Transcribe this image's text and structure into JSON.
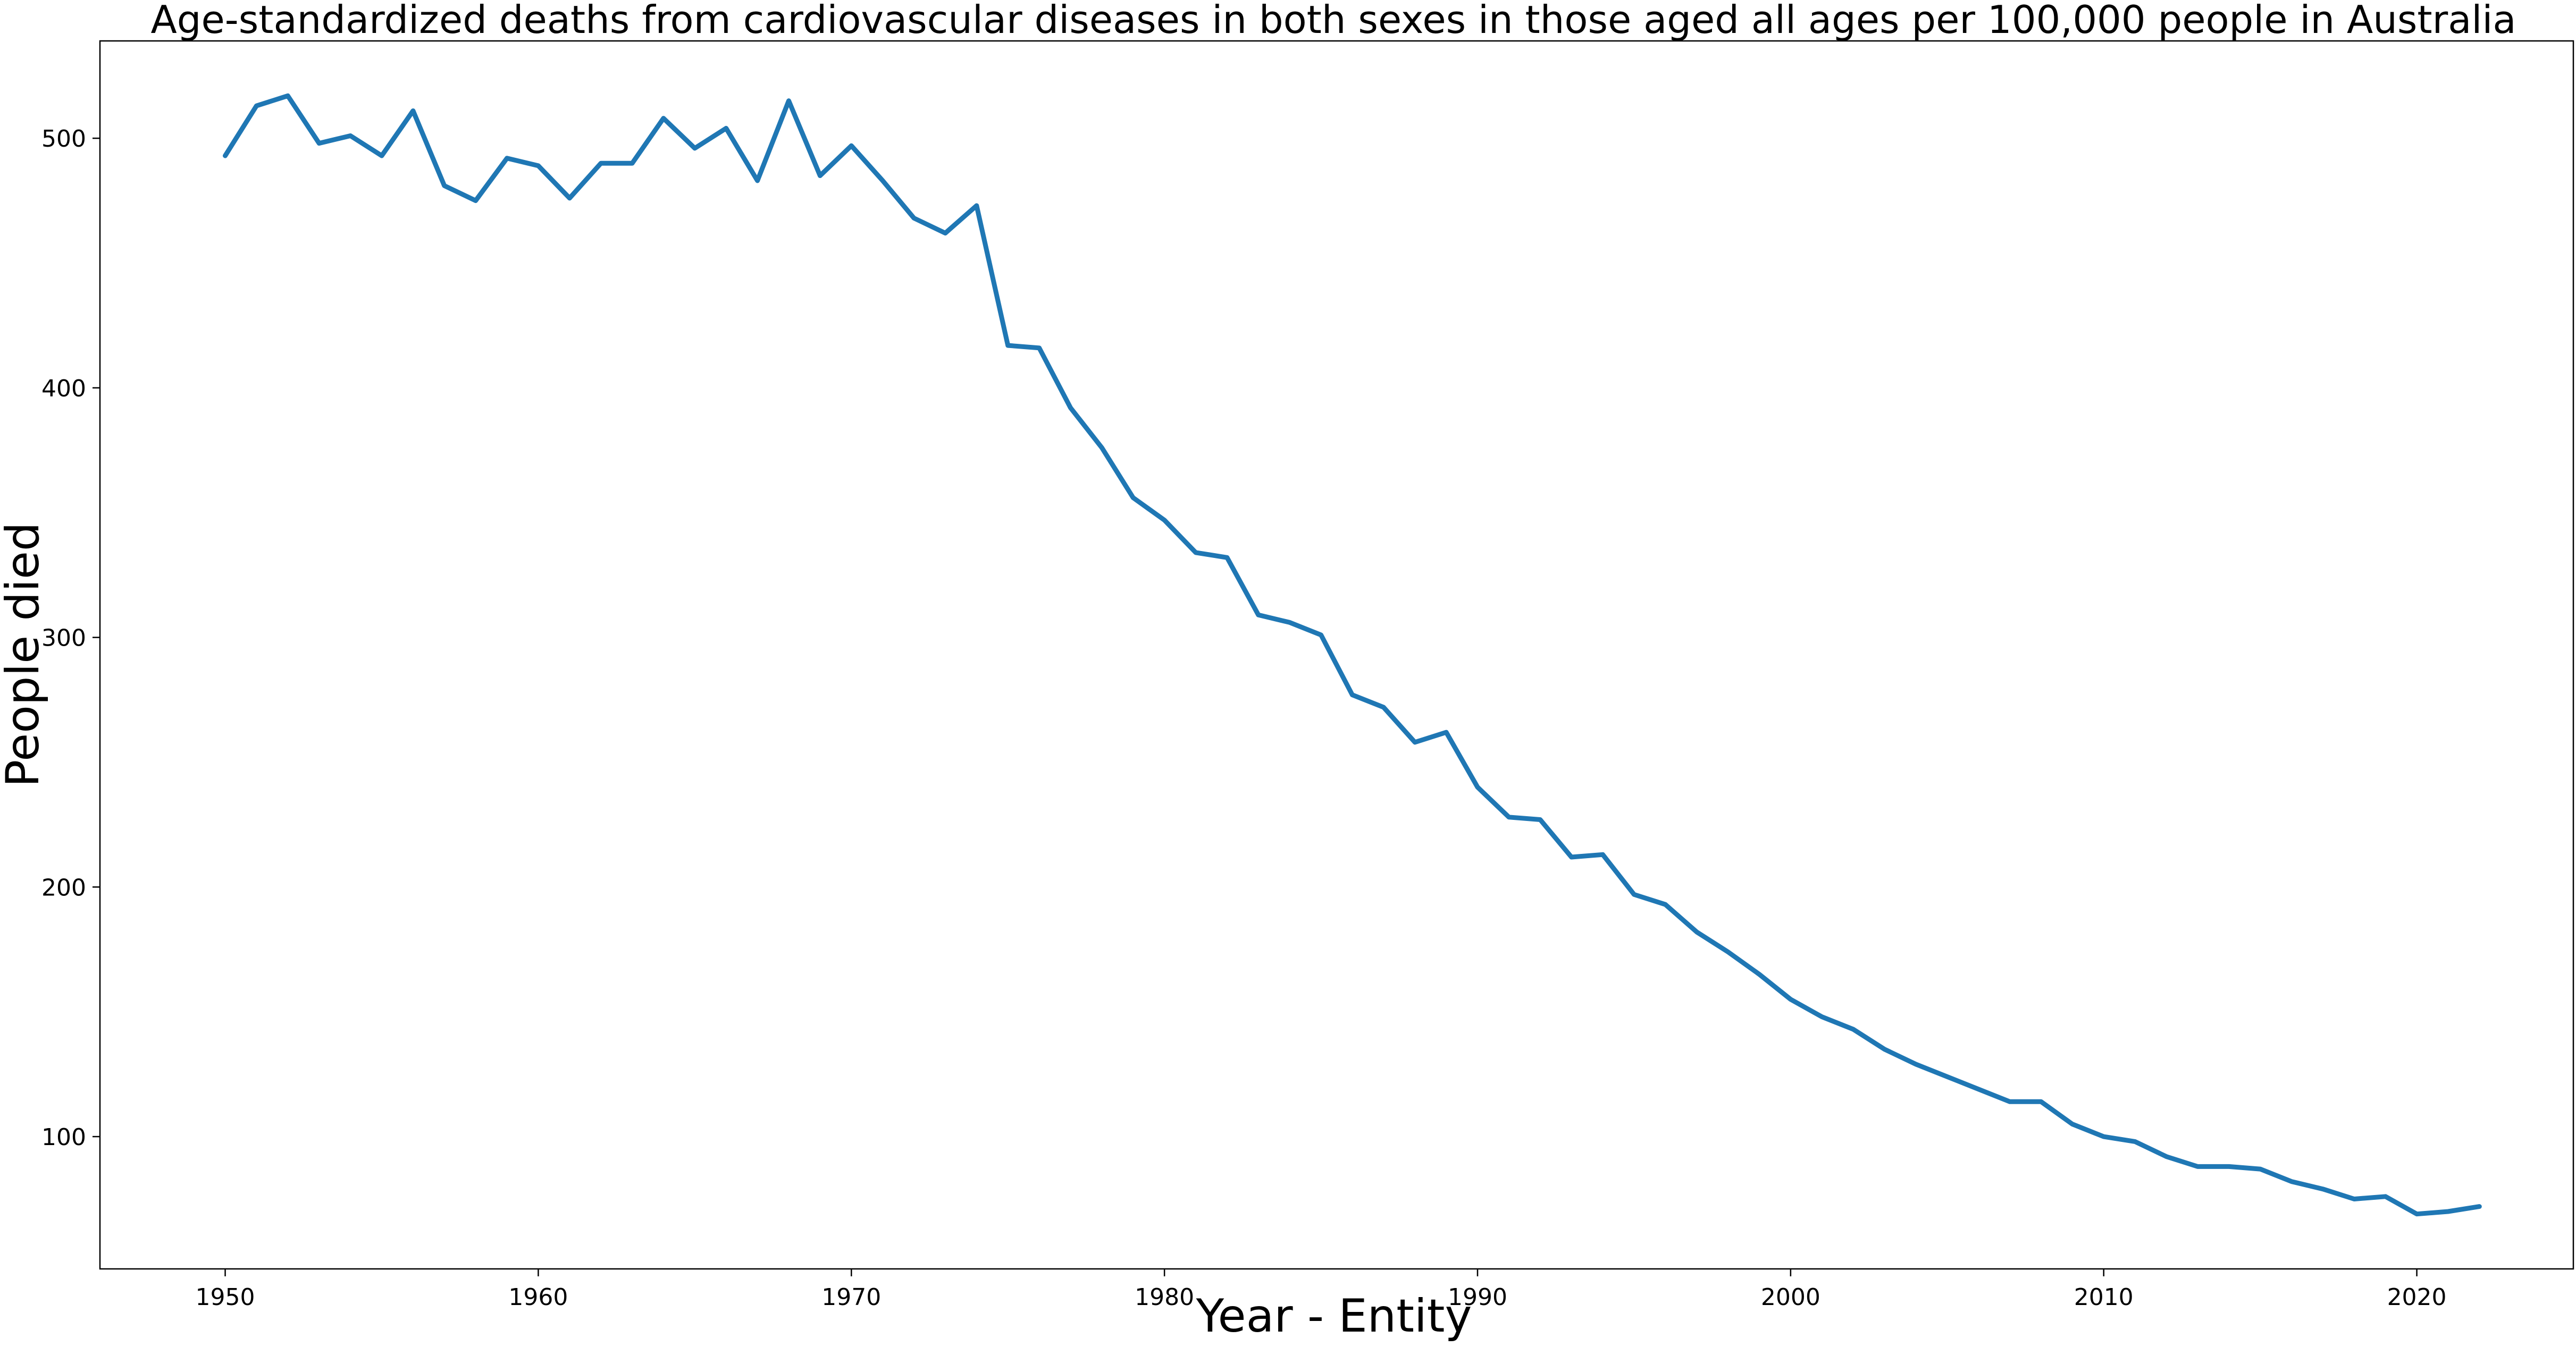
{
  "chart_data": {
    "type": "line",
    "title": "Age-standardized deaths from cardiovascular diseases in both sexes in those aged all ages per 100,000 people in Australia",
    "xlabel": "Year - Entity",
    "ylabel": "People died",
    "xlim": [
      1946,
      2025
    ],
    "ylim": [
      47,
      539
    ],
    "x_ticks": [
      1950,
      1960,
      1970,
      1980,
      1990,
      2000,
      2010,
      2020
    ],
    "y_ticks": [
      100,
      200,
      300,
      400,
      500
    ],
    "grid": false,
    "legend": "none",
    "colors": {
      "line": "#1f77b4",
      "axes": "#000000",
      "background": "#ffffff"
    },
    "series": [
      {
        "x": [
          1950,
          1951,
          1952,
          1953,
          1954,
          1955,
          1956,
          1957,
          1958,
          1959,
          1960,
          1961,
          1962,
          1963,
          1964,
          1965,
          1966,
          1967,
          1968,
          1969,
          1970,
          1971,
          1972,
          1973,
          1974,
          1975,
          1976,
          1977,
          1978,
          1979,
          1980,
          1981,
          1982,
          1983,
          1984,
          1985,
          1986,
          1987,
          1988,
          1989,
          1990,
          1991,
          1992,
          1993,
          1994,
          1995,
          1996,
          1997,
          1998,
          1999,
          2000,
          2001,
          2002,
          2003,
          2004,
          2005,
          2006,
          2007,
          2008,
          2009,
          2010,
          2011,
          2012,
          2013,
          2014,
          2015,
          2016,
          2017,
          2018,
          2019,
          2020,
          2021,
          2022
        ],
        "values": [
          493,
          513,
          517,
          498,
          501,
          493,
          511,
          481,
          475,
          492,
          489,
          476,
          490,
          490,
          508,
          496,
          504,
          483,
          515,
          485,
          497,
          483,
          468,
          462,
          473,
          417,
          416,
          392,
          376,
          356,
          347,
          334,
          332,
          309,
          306,
          301,
          277,
          272,
          258,
          262,
          240,
          228,
          227,
          212,
          213,
          197,
          193,
          182,
          174,
          165,
          155,
          148,
          143,
          135,
          129,
          124,
          119,
          114,
          114,
          105,
          100,
          98,
          92,
          88,
          88,
          87,
          82,
          79,
          75,
          76,
          69,
          70,
          72
        ]
      }
    ]
  }
}
